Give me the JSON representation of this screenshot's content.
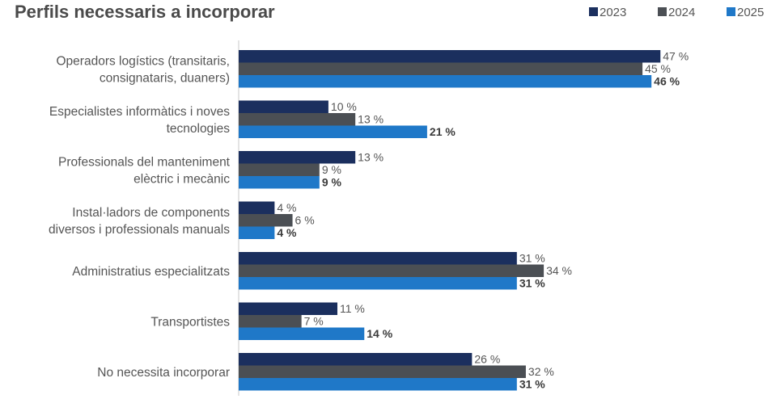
{
  "chart_data": {
    "type": "bar",
    "orientation": "horizontal",
    "title": "Perfils necessaris a incorporar",
    "legend_position": "top-right",
    "categories": [
      [
        "Operadors logístics (transitaris,",
        "consignataris, duaners)"
      ],
      [
        "Especialistes informàtics i noves",
        "tecnologies"
      ],
      [
        "Professionals del manteniment",
        "elèctric i mecànic"
      ],
      [
        "Instal·ladors de components",
        "diversos i professionals manuals"
      ],
      [
        "Administratius especialitzats"
      ],
      [
        "Transportistes"
      ],
      [
        "No necessita incorporar"
      ]
    ],
    "series": [
      {
        "name": "2023",
        "color": "#1b2f5e",
        "values": [
          47,
          10,
          13,
          4,
          31,
          11,
          26
        ],
        "bold_labels": false
      },
      {
        "name": "2024",
        "color": "#4b4f54",
        "values": [
          45,
          13,
          9,
          6,
          34,
          7,
          32
        ],
        "bold_labels": false
      },
      {
        "name": "2025",
        "color": "#1f78c8",
        "values": [
          46,
          21,
          9,
          4,
          31,
          14,
          31
        ],
        "bold_labels": true
      }
    ],
    "value_suffix": " %",
    "xlim": [
      0,
      55
    ],
    "grid": false
  }
}
